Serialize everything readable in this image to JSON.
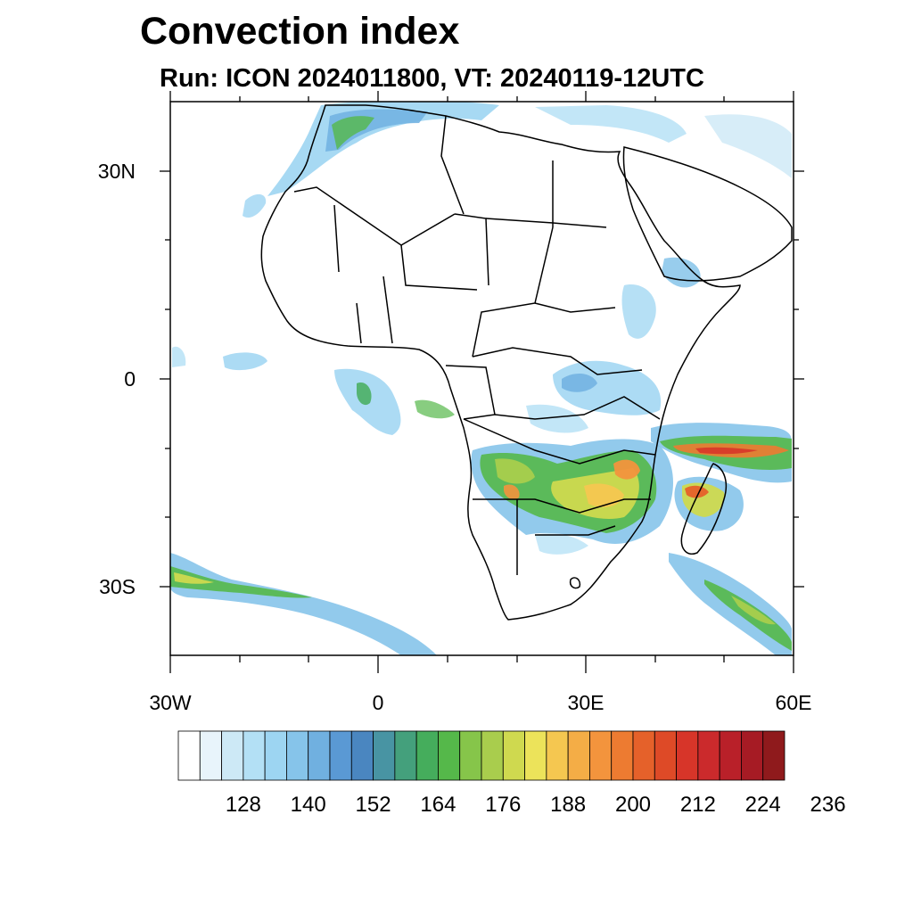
{
  "title": "Convection index",
  "subtitle": "Run: ICON 2024011800,  VT: 20240119-12UTC",
  "map": {
    "projection": "cylindrical equidistant",
    "lon_range": [
      -30,
      60
    ],
    "lat_range": [
      -40,
      40
    ],
    "lat_labels": [
      "30N",
      "0",
      "30S"
    ],
    "lon_labels": [
      "30W",
      "0",
      "30E",
      "60E"
    ],
    "region": "Africa"
  },
  "colorbar": {
    "tick_labels": [
      "128",
      "140",
      "152",
      "164",
      "176",
      "188",
      "200",
      "212",
      "224",
      "236"
    ],
    "colors": [
      "#ffffff",
      "#e8f4fb",
      "#cde9f6",
      "#b3e0f5",
      "#9dd5f2",
      "#86c4ea",
      "#70b0e0",
      "#5a99d4",
      "#4a86c0",
      "#4894a3",
      "#44a07c",
      "#45ad5c",
      "#55b84a",
      "#86c54a",
      "#a9cd4d",
      "#cfd94f",
      "#ece35a",
      "#f5c750",
      "#f4ad46",
      "#f3943d",
      "#ed7b31",
      "#e5612a",
      "#de4a27",
      "#d73529",
      "#cb2a2c",
      "#b92029",
      "#a61b24",
      "#8f1a1c"
    ]
  }
}
